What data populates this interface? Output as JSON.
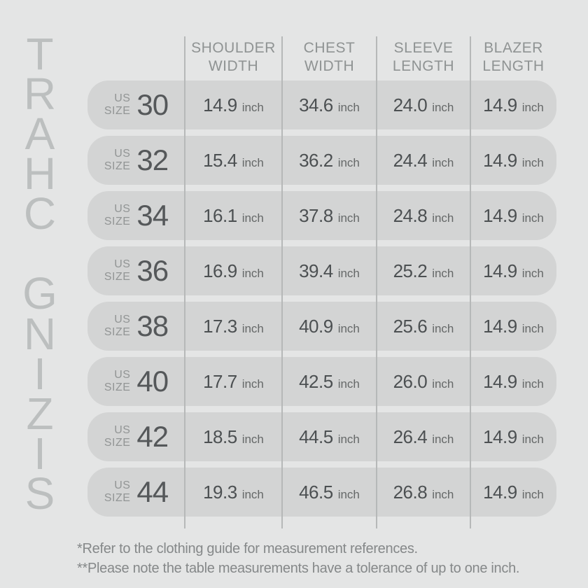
{
  "title": "SIZING CHART",
  "table": {
    "row_label_prefix": {
      "line1": "US",
      "line2": "SIZE"
    },
    "unit": "inch",
    "columns": [
      {
        "line1": "SHOULDER",
        "line2": "WIDTH"
      },
      {
        "line1": "CHEST",
        "line2": "WIDTH"
      },
      {
        "line1": "SLEEVE",
        "line2": "LENGTH"
      },
      {
        "line1": "BLAZER",
        "line2": "LENGTH"
      }
    ],
    "rows": [
      {
        "size": "30",
        "values": [
          "14.9",
          "34.6",
          "24.0",
          "14.9"
        ]
      },
      {
        "size": "32",
        "values": [
          "15.4",
          "36.2",
          "24.4",
          "14.9"
        ]
      },
      {
        "size": "34",
        "values": [
          "16.1",
          "37.8",
          "24.8",
          "14.9"
        ]
      },
      {
        "size": "36",
        "values": [
          "16.9",
          "39.4",
          "25.2",
          "14.9"
        ]
      },
      {
        "size": "38",
        "values": [
          "17.3",
          "40.9",
          "25.6",
          "14.9"
        ]
      },
      {
        "size": "40",
        "values": [
          "17.7",
          "42.5",
          "26.0",
          "14.9"
        ]
      },
      {
        "size": "42",
        "values": [
          "18.5",
          "44.5",
          "26.4",
          "14.9"
        ]
      },
      {
        "size": "44",
        "values": [
          "19.3",
          "46.5",
          "26.8",
          "14.9"
        ]
      }
    ]
  },
  "footnotes": [
    "*Refer to the clothing guide for measurement references.",
    "**Please note the table measurements have a tolerance of up to one inch."
  ],
  "colors": {
    "background": "#e4e5e5",
    "row_pill": "#d3d4d4",
    "divider": "#b6b8b8",
    "vertical_title_text": "#bcbfbf",
    "header_text": "#8f9393",
    "size_number_text": "#55585a",
    "value_text": "#4c5052",
    "footnote_text": "#858889"
  },
  "chart_data": {
    "type": "table",
    "title": "SIZING CHART",
    "columns": [
      "US SIZE",
      "SHOULDER WIDTH",
      "CHEST WIDTH",
      "SLEEVE LENGTH",
      "BLAZER LENGTH"
    ],
    "unit": "inch",
    "rows": [
      [
        30,
        14.9,
        34.6,
        24.0,
        14.9
      ],
      [
        32,
        15.4,
        36.2,
        24.4,
        14.9
      ],
      [
        34,
        16.1,
        37.8,
        24.8,
        14.9
      ],
      [
        36,
        16.9,
        39.4,
        25.2,
        14.9
      ],
      [
        38,
        17.3,
        40.9,
        25.6,
        14.9
      ],
      [
        40,
        17.7,
        42.5,
        26.0,
        14.9
      ],
      [
        42,
        18.5,
        44.5,
        26.4,
        14.9
      ],
      [
        44,
        19.3,
        46.5,
        26.8,
        14.9
      ]
    ],
    "footnotes": [
      "*Refer to the clothing guide for measurement references.",
      "**Please note the table measurements have a tolerance of up to one inch."
    ]
  }
}
